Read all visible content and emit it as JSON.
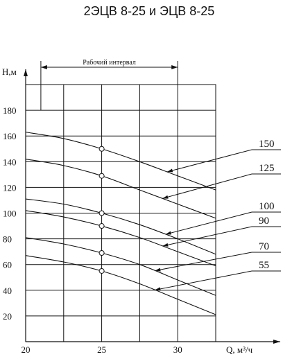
{
  "chart_data": {
    "type": "line",
    "title": "2ЭЦВ 8-25 и ЭЦВ 8-25",
    "xlabel": "Q, м³/ч",
    "ylabel": "Н,м",
    "xlim": [
      20,
      32.5
    ],
    "ylim": [
      0,
      200
    ],
    "x_ticks": [
      20,
      25,
      30
    ],
    "y_ticks": [
      20,
      40,
      60,
      80,
      100,
      120,
      140,
      160,
      180
    ],
    "grid": true,
    "operating_interval": {
      "label": "Рабочий интервал",
      "x": [
        21,
        30
      ]
    },
    "series": [
      {
        "name": "150",
        "x": [
          20,
          22.5,
          25,
          27.5,
          30,
          32.5
        ],
        "y": [
          163,
          158,
          150,
          140,
          129,
          118
        ],
        "marker_x": 25
      },
      {
        "name": "125",
        "x": [
          20,
          22.5,
          25,
          27.5,
          30,
          32.5
        ],
        "y": [
          142,
          137,
          129,
          118,
          107,
          96
        ],
        "marker_x": 25
      },
      {
        "name": "100",
        "x": [
          20,
          22.5,
          25,
          27.5,
          30,
          32.5
        ],
        "y": [
          111,
          107,
          100,
          91,
          80,
          68
        ],
        "marker_x": 25
      },
      {
        "name": "90",
        "x": [
          20,
          22.5,
          25,
          27.5,
          30,
          32.5
        ],
        "y": [
          102,
          97,
          90,
          81,
          70,
          59
        ],
        "marker_x": 25
      },
      {
        "name": "70",
        "x": [
          20,
          22.5,
          25,
          27.5,
          30,
          32.5
        ],
        "y": [
          81,
          76,
          69,
          60,
          48,
          36
        ],
        "marker_x": 25
      },
      {
        "name": "55",
        "x": [
          20,
          22.5,
          25,
          27.5,
          30,
          32.5
        ],
        "y": [
          67,
          62,
          55,
          45,
          33,
          21
        ],
        "marker_x": 25
      }
    ]
  }
}
